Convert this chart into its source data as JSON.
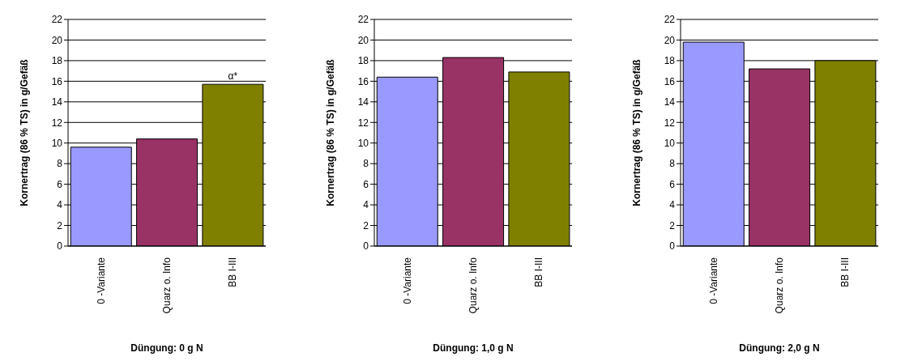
{
  "chart_data": [
    {
      "type": "bar",
      "xlabel": "Düngung: 0 g N",
      "ylabel": "Kornertrag (86 % TS) in g/Gefäß",
      "categories": [
        "0 -Variante",
        "Quarz o. Info",
        "BB I-III"
      ],
      "values": [
        9.6,
        10.4,
        15.7
      ],
      "colors": [
        "#9999ff",
        "#993366",
        "#808000"
      ],
      "ylim": [
        0,
        22
      ],
      "yticks": [
        0,
        2,
        4,
        6,
        8,
        10,
        12,
        14,
        16,
        18,
        20,
        22
      ],
      "grid": "y",
      "annotations": [
        {
          "text": "α*",
          "x": "BB I-III",
          "y": 15.7
        }
      ]
    },
    {
      "type": "bar",
      "xlabel": "Düngung: 1,0 g N",
      "ylabel": "Kornertrag (86 % TS) in g/Gefäß",
      "categories": [
        "0 -Variante",
        "Quarz o. Info",
        "BB I-III"
      ],
      "values": [
        16.4,
        18.3,
        16.9
      ],
      "colors": [
        "#9999ff",
        "#993366",
        "#808000"
      ],
      "ylim": [
        0,
        22
      ],
      "yticks": [
        0,
        2,
        4,
        6,
        8,
        10,
        12,
        14,
        16,
        18,
        20,
        22
      ],
      "grid": "y"
    },
    {
      "type": "bar",
      "xlabel": "Düngung: 2,0 g N",
      "ylabel": "Kornertrag (86 % TS) in g/Gefäß",
      "categories": [
        "0 -Variante",
        "Quarz o. Info",
        "BB I-III"
      ],
      "values": [
        19.8,
        17.2,
        18.0
      ],
      "colors": [
        "#9999ff",
        "#993366",
        "#808000"
      ],
      "ylim": [
        0,
        22
      ],
      "yticks": [
        0,
        2,
        4,
        6,
        8,
        10,
        12,
        14,
        16,
        18,
        20,
        22
      ],
      "grid": "y"
    }
  ]
}
